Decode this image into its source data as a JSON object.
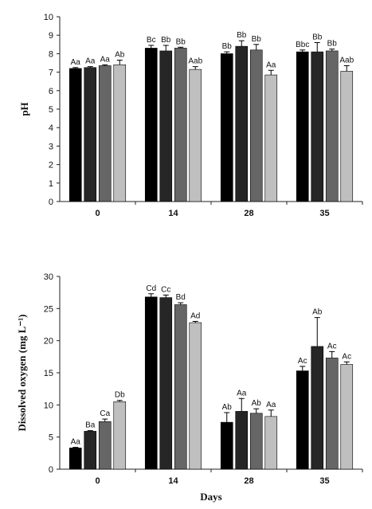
{
  "chart_data": [
    {
      "type": "bar",
      "categories": [
        "0",
        "14",
        "28",
        "35"
      ],
      "ylabel": "pH",
      "xlabel": "",
      "ylim": [
        0,
        10
      ],
      "yticks": [
        0,
        1,
        2,
        3,
        4,
        5,
        6,
        7,
        8,
        9,
        10
      ],
      "grid": false,
      "legend": "none",
      "colors": [
        "#000000",
        "#262626",
        "#666666",
        "#bfbfbf"
      ],
      "series": [
        {
          "values": [
            7.2,
            8.3,
            8.0,
            8.1
          ],
          "errors": [
            0.05,
            0.15,
            0.1,
            0.1
          ],
          "labels": [
            "Aa",
            "Bc",
            "Bb",
            "Bbc"
          ]
        },
        {
          "values": [
            7.25,
            8.15,
            8.4,
            8.1
          ],
          "errors": [
            0.05,
            0.3,
            0.3,
            0.5
          ],
          "labels": [
            "Aa",
            "Bb",
            "Bb",
            "Bb"
          ]
        },
        {
          "values": [
            7.35,
            8.3,
            8.2,
            8.15
          ],
          "errors": [
            0.05,
            0.05,
            0.3,
            0.1
          ],
          "labels": [
            "Aa",
            "Bb",
            "Bb",
            "Bb"
          ]
        },
        {
          "values": [
            7.4,
            7.15,
            6.85,
            7.05
          ],
          "errors": [
            0.25,
            0.15,
            0.25,
            0.3
          ],
          "labels": [
            "Ab",
            "Aab",
            "Aa",
            "Aab"
          ]
        }
      ]
    },
    {
      "type": "bar",
      "categories": [
        "0",
        "14",
        "28",
        "35"
      ],
      "ylabel": "Dissolved oxygen (mg L⁻¹)",
      "xlabel": "Days",
      "ylim": [
        0,
        30
      ],
      "yticks": [
        0,
        5,
        10,
        15,
        20,
        25,
        30
      ],
      "grid": false,
      "legend": "none",
      "colors": [
        "#000000",
        "#262626",
        "#666666",
        "#bfbfbf"
      ],
      "series": [
        {
          "values": [
            3.3,
            26.8,
            7.3,
            15.3
          ],
          "errors": [
            0.1,
            0.5,
            1.5,
            0.7
          ],
          "labels": [
            "Aa",
            "Cd",
            "Ab",
            "Ac"
          ]
        },
        {
          "values": [
            5.9,
            26.7,
            9.0,
            19.1
          ],
          "errors": [
            0.1,
            0.4,
            2.0,
            4.5
          ],
          "labels": [
            "Ba",
            "Cc",
            "Aa",
            "Ab"
          ]
        },
        {
          "values": [
            7.4,
            25.6,
            8.7,
            17.3
          ],
          "errors": [
            0.4,
            0.3,
            0.7,
            1.0
          ],
          "labels": [
            "Ca",
            "Bd",
            "Ab",
            "Ac"
          ]
        },
        {
          "values": [
            10.5,
            22.8,
            8.2,
            16.3
          ],
          "errors": [
            0.2,
            0.2,
            1.0,
            0.4
          ],
          "labels": [
            "Db",
            "Ad",
            "Aa",
            "Ac"
          ]
        }
      ]
    }
  ]
}
